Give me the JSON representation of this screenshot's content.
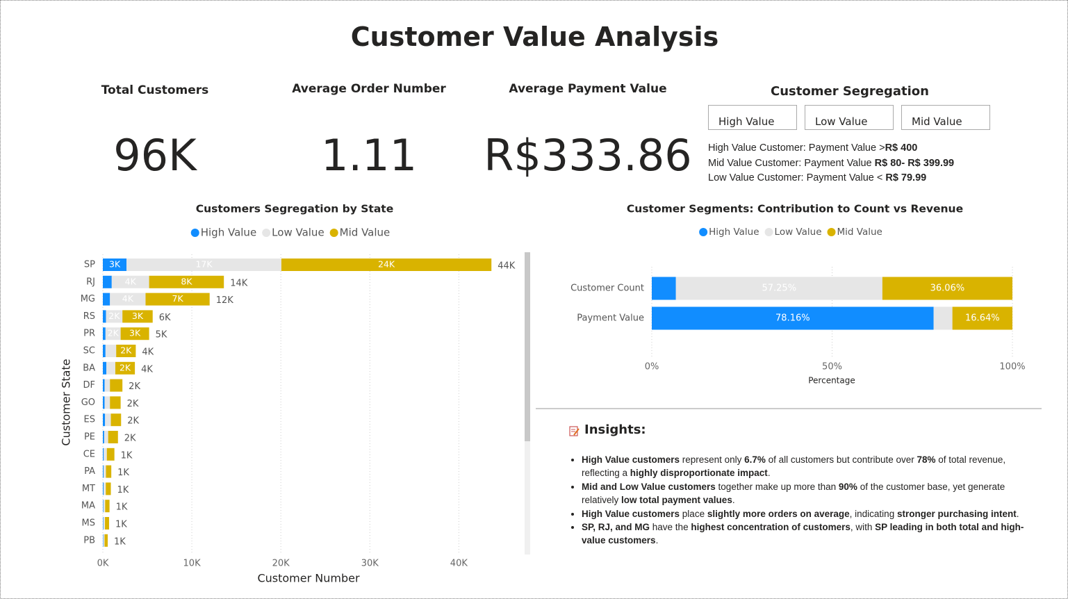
{
  "title": "Customer Value Analysis",
  "kpis": [
    {
      "title": "Total Customers",
      "value": "96K"
    },
    {
      "title": "Average Order Number",
      "value": "1.11"
    },
    {
      "title": "Average Payment Value",
      "value": "R$333.86"
    }
  ],
  "segregation": {
    "title": "Customer Segregation",
    "buttons": [
      "High Value",
      "Low Value",
      "Mid Value"
    ],
    "definitions": [
      {
        "label": "High Value Customer: Payment Value >",
        "value": "R$ 400"
      },
      {
        "label": "Mid Value Customer: Payment Value ",
        "value": "R$ 80- R$ 399.99"
      },
      {
        "label": "Low Value Customer: Payment Value < ",
        "value": "R$ 79.99"
      }
    ]
  },
  "chart_data": [
    {
      "type": "bar",
      "orientation": "horizontal",
      "stacked": true,
      "title": "Customers Segregation by State",
      "x_label": "Customer Number",
      "y_label": "Customer State",
      "categories": [
        "SP",
        "RJ",
        "MG",
        "RS",
        "PR",
        "SC",
        "BA",
        "DF",
        "GO",
        "ES",
        "PE",
        "CE",
        "PA",
        "MT",
        "MA",
        "MS",
        "PB"
      ],
      "series": [
        {
          "name": "High Value",
          "color": "#118dff",
          "values": [
            2660,
            1000,
            800,
            350,
            300,
            300,
            400,
            200,
            200,
            250,
            150,
            100,
            80,
            80,
            60,
            60,
            40
          ],
          "value_labels": [
            "3K",
            null,
            null,
            null,
            null,
            null,
            null,
            null,
            null,
            null,
            null,
            null,
            null,
            null,
            null,
            null,
            null
          ]
        },
        {
          "name": "Low Value",
          "color": "#e6e6e6",
          "values": [
            17400,
            4200,
            4000,
            1850,
            1700,
            1200,
            1000,
            600,
            600,
            650,
            450,
            350,
            270,
            250,
            200,
            180,
            150
          ],
          "value_labels": [
            "17K",
            "4K",
            "4K",
            "2K",
            "2K",
            null,
            null,
            null,
            null,
            null,
            null,
            null,
            null,
            null,
            null,
            null,
            null
          ]
        },
        {
          "name": "Mid Value",
          "color": "#d9b300",
          "values": [
            23600,
            8400,
            7200,
            3400,
            3200,
            2200,
            2200,
            1400,
            1200,
            1150,
            1100,
            850,
            600,
            570,
            490,
            460,
            360
          ],
          "value_labels": [
            "24K",
            "8K",
            "7K",
            "3K",
            "3K",
            "2K",
            "2K",
            null,
            null,
            null,
            null,
            null,
            null,
            null,
            null,
            null,
            null
          ]
        }
      ],
      "totals": [
        43660,
        13600,
        12000,
        5600,
        5200,
        3700,
        3600,
        2200,
        2000,
        2050,
        1700,
        1300,
        950,
        900,
        750,
        700,
        550
      ],
      "total_labels": [
        "44K",
        "14K",
        "12K",
        "6K",
        "5K",
        "4K",
        "4K",
        "2K",
        "2K",
        "2K",
        "2K",
        "1K",
        "1K",
        "1K",
        "1K",
        "1K",
        "1K"
      ],
      "xlim": [
        0,
        47000
      ],
      "xticks": [
        {
          "value": 0,
          "label": "0K"
        },
        {
          "value": 10000,
          "label": "10K"
        },
        {
          "value": 20000,
          "label": "20K"
        },
        {
          "value": 30000,
          "label": "30K"
        },
        {
          "value": 40000,
          "label": "40K"
        }
      ],
      "grid": true,
      "legend": "top"
    },
    {
      "type": "bar",
      "orientation": "horizontal",
      "stacked": true,
      "title": "Customer Segments: Contribution to Count vs Revenue",
      "x_label": "Percentage",
      "categories": [
        "Customer Count",
        "Payment Value"
      ],
      "series": [
        {
          "name": "High Value",
          "color": "#118dff",
          "values": [
            6.69,
            78.16
          ],
          "value_labels": [
            null,
            "78.16%"
          ]
        },
        {
          "name": "Low Value",
          "color": "#e6e6e6",
          "values": [
            57.25,
            5.2
          ],
          "value_labels": [
            "57.25%",
            null
          ]
        },
        {
          "name": "Mid Value",
          "color": "#d9b300",
          "values": [
            36.06,
            16.64
          ],
          "value_labels": [
            "36.06%",
            "16.64%"
          ]
        }
      ],
      "xlim": [
        0,
        100
      ],
      "xticks": [
        {
          "value": 0,
          "label": "0%"
        },
        {
          "value": 50,
          "label": "50%"
        },
        {
          "value": 100,
          "label": "100%"
        }
      ],
      "grid": true,
      "legend": "top"
    }
  ],
  "insights": {
    "title": "Insights:",
    "items": [
      [
        {
          "text": "High Value customers",
          "bold": true
        },
        {
          "text": " represent only "
        },
        {
          "text": "6.7%",
          "bold": true
        },
        {
          "text": " of all customers but contribute over "
        },
        {
          "text": "78%",
          "bold": true
        },
        {
          "text": " of total revenue, reflecting a "
        },
        {
          "text": "highly disproportionate impact",
          "bold": true
        },
        {
          "text": "."
        }
      ],
      [
        {
          "text": "Mid and Low Value customers",
          "bold": true
        },
        {
          "text": " together make up more than "
        },
        {
          "text": "90%",
          "bold": true
        },
        {
          "text": " of the customer base, yet generate relatively "
        },
        {
          "text": "low total payment values",
          "bold": true
        },
        {
          "text": "."
        }
      ],
      [
        {
          "text": "High Value customers",
          "bold": true
        },
        {
          "text": " place "
        },
        {
          "text": "slightly more orders on average",
          "bold": true
        },
        {
          "text": ", indicating "
        },
        {
          "text": "stronger purchasing intent",
          "bold": true
        },
        {
          "text": "."
        }
      ],
      [
        {
          "text": "SP, RJ, and MG",
          "bold": true
        },
        {
          "text": " have the "
        },
        {
          "text": "highest concentration of customers",
          "bold": true
        },
        {
          "text": ", with "
        },
        {
          "text": "SP leading in both total and high-value customers",
          "bold": true
        },
        {
          "text": "."
        }
      ]
    ]
  }
}
